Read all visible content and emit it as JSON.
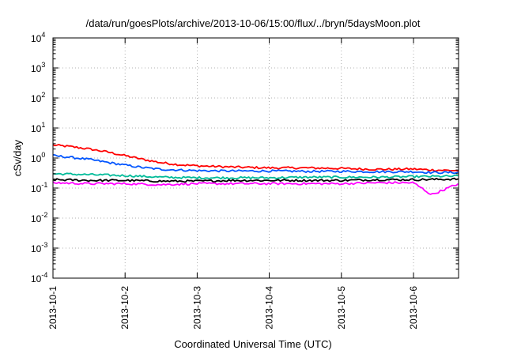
{
  "chart_data": {
    "type": "line",
    "title": "/data/run/goesPlots/archive/2013-10-06/15:00/flux/../bryn/5daysMoon.plot",
    "xlabel": "Coordinated Universal Time (UTC)",
    "ylabel": "cSv/day",
    "x_range": [
      "2013-10-01T00:00",
      "2013-10-06T15:00"
    ],
    "x_ticks": [
      "2013-10-1",
      "2013-10-2",
      "2013-10-3",
      "2013-10-4",
      "2013-10-5",
      "2013-10-6"
    ],
    "y_scale": "log",
    "ylim": [
      0.0001,
      10000
    ],
    "y_ticks": [
      {
        "base": "10",
        "exp": "-4",
        "value": 0.0001
      },
      {
        "base": "10",
        "exp": "-3",
        "value": 0.001
      },
      {
        "base": "10",
        "exp": "-2",
        "value": 0.01
      },
      {
        "base": "10",
        "exp": "-1",
        "value": 0.1
      },
      {
        "base": "10",
        "exp": "0",
        "value": 1
      },
      {
        "base": "10",
        "exp": "1",
        "value": 10
      },
      {
        "base": "10",
        "exp": "2",
        "value": 100
      },
      {
        "base": "10",
        "exp": "3",
        "value": 1000
      },
      {
        "base": "10",
        "exp": "4",
        "value": 10000
      }
    ],
    "grid": true,
    "legend": "none",
    "series": [
      {
        "color": "#ff0000",
        "x": [
          "2013-10-01T00:00",
          "2013-10-01T06:00",
          "2013-10-01T12:00",
          "2013-10-01T18:00",
          "2013-10-02T00:00",
          "2013-10-02T06:00",
          "2013-10-02T12:00",
          "2013-10-02T18:00",
          "2013-10-03T00:00",
          "2013-10-03T12:00",
          "2013-10-04T00:00",
          "2013-10-04T12:00",
          "2013-10-05T00:00",
          "2013-10-05T12:00",
          "2013-10-06T00:00",
          "2013-10-06T06:00",
          "2013-10-06T15:00"
        ],
        "values": [
          2.7,
          2.4,
          2.0,
          1.6,
          1.2,
          0.9,
          0.7,
          0.6,
          0.55,
          0.5,
          0.47,
          0.47,
          0.45,
          0.42,
          0.43,
          0.4,
          0.38
        ]
      },
      {
        "color": "#0055ff",
        "x": [
          "2013-10-01T00:00",
          "2013-10-01T06:00",
          "2013-10-01T12:00",
          "2013-10-01T18:00",
          "2013-10-02T00:00",
          "2013-10-02T06:00",
          "2013-10-02T12:00",
          "2013-10-02T18:00",
          "2013-10-03T00:00",
          "2013-10-03T12:00",
          "2013-10-04T00:00",
          "2013-10-04T12:00",
          "2013-10-05T00:00",
          "2013-10-05T12:00",
          "2013-10-06T00:00",
          "2013-10-06T06:00",
          "2013-10-06T15:00"
        ],
        "values": [
          1.2,
          1.05,
          0.9,
          0.72,
          0.58,
          0.48,
          0.42,
          0.4,
          0.38,
          0.37,
          0.37,
          0.36,
          0.36,
          0.35,
          0.35,
          0.33,
          0.33
        ]
      },
      {
        "color": "#00bb99",
        "x": [
          "2013-10-01T00:00",
          "2013-10-01T12:00",
          "2013-10-02T00:00",
          "2013-10-02T12:00",
          "2013-10-03T00:00",
          "2013-10-03T12:00",
          "2013-10-04T00:00",
          "2013-10-04T12:00",
          "2013-10-05T00:00",
          "2013-10-05T12:00",
          "2013-10-06T00:00",
          "2013-10-06T15:00"
        ],
        "values": [
          0.3,
          0.28,
          0.26,
          0.23,
          0.22,
          0.22,
          0.22,
          0.23,
          0.23,
          0.23,
          0.24,
          0.25
        ]
      },
      {
        "color": "#000000",
        "x": [
          "2013-10-01T00:00",
          "2013-10-01T12:00",
          "2013-10-02T00:00",
          "2013-10-02T12:00",
          "2013-10-03T00:00",
          "2013-10-03T12:00",
          "2013-10-04T00:00",
          "2013-10-04T12:00",
          "2013-10-05T00:00",
          "2013-10-05T12:00",
          "2013-10-06T00:00",
          "2013-10-06T15:00"
        ],
        "values": [
          0.19,
          0.18,
          0.18,
          0.17,
          0.17,
          0.18,
          0.18,
          0.18,
          0.18,
          0.19,
          0.19,
          0.2
        ]
      },
      {
        "color": "#ff00ff",
        "x": [
          "2013-10-01T00:00",
          "2013-10-01T12:00",
          "2013-10-02T00:00",
          "2013-10-02T12:00",
          "2013-10-03T00:00",
          "2013-10-03T12:00",
          "2013-10-04T00:00",
          "2013-10-04T12:00",
          "2013-10-05T00:00",
          "2013-10-05T12:00",
          "2013-10-06T00:00",
          "2013-10-06T06:00",
          "2013-10-06T15:00"
        ],
        "values": [
          0.15,
          0.14,
          0.14,
          0.13,
          0.14,
          0.14,
          0.14,
          0.14,
          0.14,
          0.15,
          0.15,
          0.06,
          0.14
        ]
      }
    ]
  }
}
